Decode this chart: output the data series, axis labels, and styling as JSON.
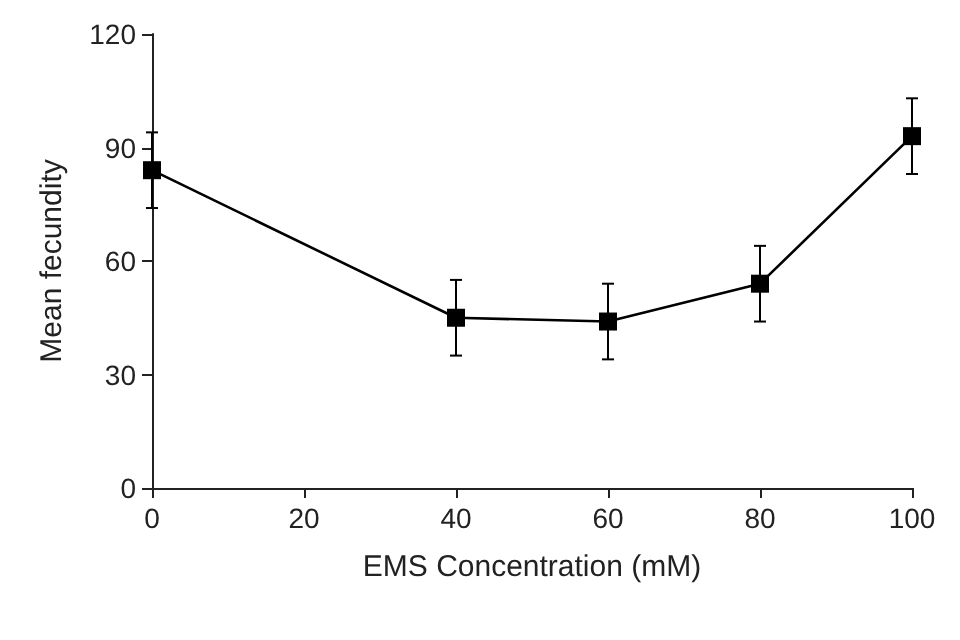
{
  "chart_data": {
    "type": "line",
    "xlabel": "EMS Concentration (mM)",
    "ylabel": "Mean fecundity",
    "x": [
      0,
      40,
      60,
      80,
      100
    ],
    "series": [
      {
        "color": "#000000",
        "values": [
          84,
          45,
          44,
          54,
          93
        ],
        "errors": [
          10,
          10,
          10,
          10,
          10
        ]
      }
    ],
    "xlim": [
      0,
      100
    ],
    "xticks": [
      0,
      20,
      40,
      60,
      80,
      100
    ],
    "ylim": [
      0,
      120
    ],
    "yticks": [
      0,
      30,
      60,
      90,
      120
    ],
    "grid": false,
    "marker": "square",
    "line_style": "solid"
  }
}
